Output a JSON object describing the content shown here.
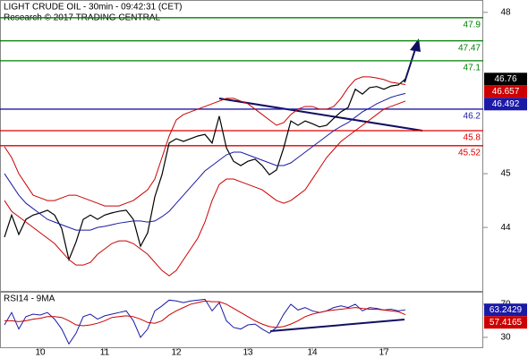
{
  "chart_data": [
    {
      "type": "line",
      "title": "LIGHT CRUDE OIL - 30min - 09:42:31 (CET)",
      "subtitle": "Research © 2017 TRADING CENTRAL",
      "categories": [
        null,
        null,
        null,
        null,
        null,
        "10",
        null,
        null,
        null,
        null,
        null,
        null,
        null,
        null,
        "11",
        null,
        null,
        null,
        null,
        null,
        null,
        null,
        null,
        null,
        "12",
        null,
        null,
        null,
        null,
        null,
        null,
        null,
        null,
        null,
        "13",
        null,
        null,
        null,
        null,
        null,
        null,
        null,
        null,
        "14",
        null,
        null,
        null,
        null,
        null,
        null,
        null,
        null,
        null,
        "17",
        null,
        null,
        null
      ],
      "series": [
        {
          "color": "#000000",
          "tag": true,
          "values": [
            43.82,
            44.23,
            43.87,
            44.15,
            44.23,
            44.27,
            44.32,
            44.23,
            43.98,
            43.4,
            43.73,
            44.15,
            44.23,
            44.15,
            44.23,
            44.27,
            44.3,
            44.32,
            44.15,
            43.65,
            43.9,
            44.57,
            44.98,
            45.57,
            45.65,
            45.6,
            45.65,
            45.7,
            45.73,
            45.57,
            46.07,
            45.48,
            45.23,
            45.15,
            45.23,
            45.27,
            45.15,
            44.98,
            45.07,
            45.48,
            45.98,
            45.9,
            45.98,
            45.93,
            45.87,
            45.9,
            46.03,
            46.15,
            46.23,
            46.57,
            46.48,
            46.6,
            46.62,
            46.57,
            46.63,
            46.65,
            46.76
          ]
        },
        {
          "color": "#cc0000",
          "tag": true,
          "values": [
            45.5,
            45.3,
            45.0,
            44.8,
            44.6,
            44.55,
            44.5,
            44.5,
            44.55,
            44.6,
            44.6,
            44.55,
            44.5,
            44.45,
            44.4,
            44.4,
            44.4,
            44.45,
            44.5,
            44.6,
            44.7,
            44.9,
            45.3,
            45.7,
            46.0,
            46.1,
            46.15,
            46.2,
            46.25,
            46.3,
            46.35,
            46.4,
            46.4,
            46.35,
            46.3,
            46.2,
            46.1,
            46.0,
            45.9,
            45.95,
            46.1,
            46.2,
            46.25,
            46.25,
            46.2,
            46.2,
            46.25,
            46.4,
            46.6,
            46.75,
            46.8,
            46.8,
            46.78,
            46.75,
            46.7,
            46.68,
            46.657
          ]
        },
        {
          "color": "#1a1aa6",
          "tag": true,
          "values": [
            45.0,
            44.8,
            44.6,
            44.45,
            44.35,
            44.25,
            44.15,
            44.1,
            44.05,
            44.0,
            43.95,
            43.95,
            43.95,
            44.0,
            44.02,
            44.05,
            44.08,
            44.1,
            44.12,
            44.12,
            44.1,
            44.12,
            44.2,
            44.3,
            44.45,
            44.6,
            44.75,
            44.9,
            45.05,
            45.15,
            45.25,
            45.35,
            45.4,
            45.4,
            45.35,
            45.3,
            45.25,
            45.2,
            45.15,
            45.15,
            45.2,
            45.3,
            45.4,
            45.5,
            45.6,
            45.7,
            45.8,
            45.88,
            45.95,
            46.05,
            46.15,
            46.22,
            46.3,
            46.36,
            46.42,
            46.46,
            46.492
          ]
        },
        {
          "color": "#cc0000",
          "tag": false,
          "values": [
            44.5,
            44.3,
            44.2,
            44.1,
            44.0,
            43.9,
            43.8,
            43.7,
            43.55,
            43.4,
            43.3,
            43.3,
            43.35,
            43.5,
            43.6,
            43.7,
            43.75,
            43.75,
            43.7,
            43.6,
            43.5,
            43.35,
            43.2,
            43.1,
            43.2,
            43.4,
            43.6,
            43.8,
            44.1,
            44.5,
            44.8,
            44.9,
            44.9,
            44.85,
            44.8,
            44.75,
            44.7,
            44.6,
            44.5,
            44.45,
            44.5,
            44.6,
            44.7,
            44.9,
            45.1,
            45.3,
            45.45,
            45.6,
            45.7,
            45.8,
            45.9,
            46.0,
            46.1,
            46.2,
            46.25,
            46.3,
            46.35
          ]
        }
      ],
      "levels": [
        {
          "value": 47.9,
          "color": "#008000"
        },
        {
          "value": 47.47,
          "color": "#008000"
        },
        {
          "value": 47.1,
          "color": "#008000"
        },
        {
          "value": 46.2,
          "color": "#1a1aa6"
        },
        {
          "value": 45.8,
          "color": "#e00000"
        },
        {
          "value": 45.52,
          "color": "#e00000"
        }
      ],
      "ylim": [
        42.82,
        48.23
      ],
      "yticks": [
        44,
        45,
        48
      ]
    },
    {
      "type": "line",
      "title": "RSI14 - 9MA",
      "series": [
        {
          "color": "#1a1aa6",
          "tag": true,
          "values": [
            45,
            60,
            40,
            55,
            58,
            57,
            60,
            52,
            40,
            22,
            35,
            55,
            58,
            52,
            56,
            58,
            60,
            62,
            50,
            30,
            40,
            62,
            68,
            75,
            74,
            72,
            74,
            75,
            76,
            62,
            72,
            50,
            42,
            40,
            45,
            46,
            40,
            35,
            42,
            58,
            70,
            63,
            66,
            62,
            60,
            62,
            66,
            68,
            66,
            70,
            62,
            66,
            65,
            63,
            64,
            62,
            63.2429
          ]
        },
        {
          "color": "#cc0000",
          "tag": true,
          "values": [
            50,
            50,
            49,
            50,
            52,
            53,
            55,
            55,
            54,
            50,
            45,
            44,
            45,
            47,
            50,
            54,
            55,
            56,
            55,
            52,
            48,
            47,
            50,
            57,
            62,
            66,
            70,
            72,
            74,
            73,
            73,
            70,
            65,
            60,
            55,
            50,
            46,
            43,
            42,
            43,
            46,
            50,
            55,
            58,
            60,
            62,
            63,
            64,
            65,
            66,
            65,
            64,
            64,
            63,
            62,
            61,
            57.4165
          ]
        }
      ],
      "ylim": [
        18,
        84
      ],
      "yticks": [
        30,
        70
      ]
    }
  ]
}
